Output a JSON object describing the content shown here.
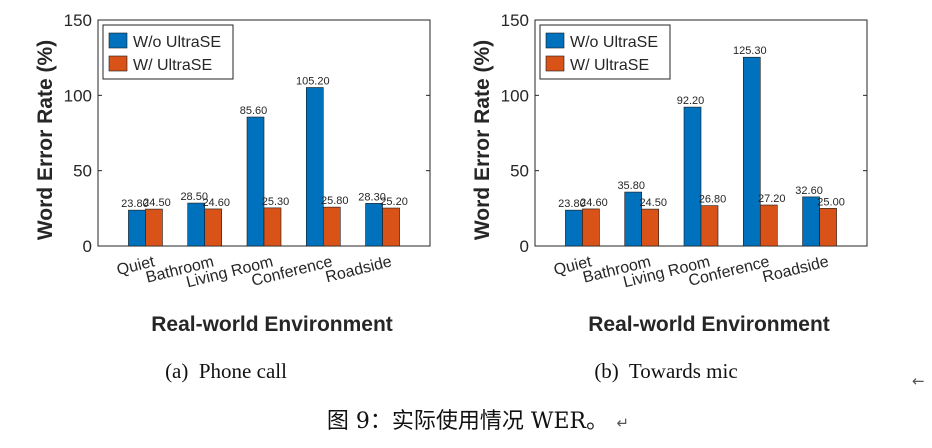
{
  "figure": {
    "caption": "图 9：实际使用情况 WER。",
    "caption_mark": "↵",
    "side_mark": "←"
  },
  "colors": {
    "blue": "#0072BD",
    "orange": "#D95319",
    "axis": "#262626",
    "grid": "#e6e6e6"
  },
  "chart_data": [
    {
      "type": "bar",
      "subcaption": "(a)  Phone call",
      "xlabel": "Real-world Environment",
      "ylabel": "Word Error Rate (%)",
      "ylim": [
        0,
        150
      ],
      "yticks": [
        0,
        50,
        100,
        150
      ],
      "categories": [
        "Quiet",
        "Bathroom",
        "Living Room",
        "Conference",
        "Roadside"
      ],
      "legend_position": "top-left",
      "series": [
        {
          "name": "W/o UltraSE",
          "color": "#0072BD",
          "values": [
            23.8,
            28.5,
            85.6,
            105.2,
            28.3
          ],
          "labels": [
            "23.80",
            "28.50",
            "85.60",
            "105.20",
            "28.30"
          ]
        },
        {
          "name": "W/ UltraSE",
          "color": "#D95319",
          "values": [
            24.5,
            24.6,
            25.3,
            25.8,
            25.2
          ],
          "labels": [
            "24.50",
            "24.60",
            "25.30",
            "25.80",
            "25.20"
          ]
        }
      ]
    },
    {
      "type": "bar",
      "subcaption": "(b)  Towards mic",
      "xlabel": "Real-world Environment",
      "ylabel": "Word Error Rate (%)",
      "ylim": [
        0,
        150
      ],
      "yticks": [
        0,
        50,
        100,
        150
      ],
      "categories": [
        "Quiet",
        "Bathroom",
        "Living Room",
        "Conference",
        "Roadside"
      ],
      "legend_position": "top-left",
      "series": [
        {
          "name": "W/o UltraSE",
          "color": "#0072BD",
          "values": [
            23.8,
            35.8,
            92.2,
            125.3,
            32.6
          ],
          "labels": [
            "23.80",
            "35.80",
            "92.20",
            "125.30",
            "32.60"
          ]
        },
        {
          "name": "W/ UltraSE",
          "color": "#D95319",
          "values": [
            24.6,
            24.5,
            26.8,
            27.2,
            25.0
          ],
          "labels": [
            "24.60",
            "24.50",
            "26.80",
            "27.20",
            "25.00"
          ]
        }
      ]
    }
  ]
}
